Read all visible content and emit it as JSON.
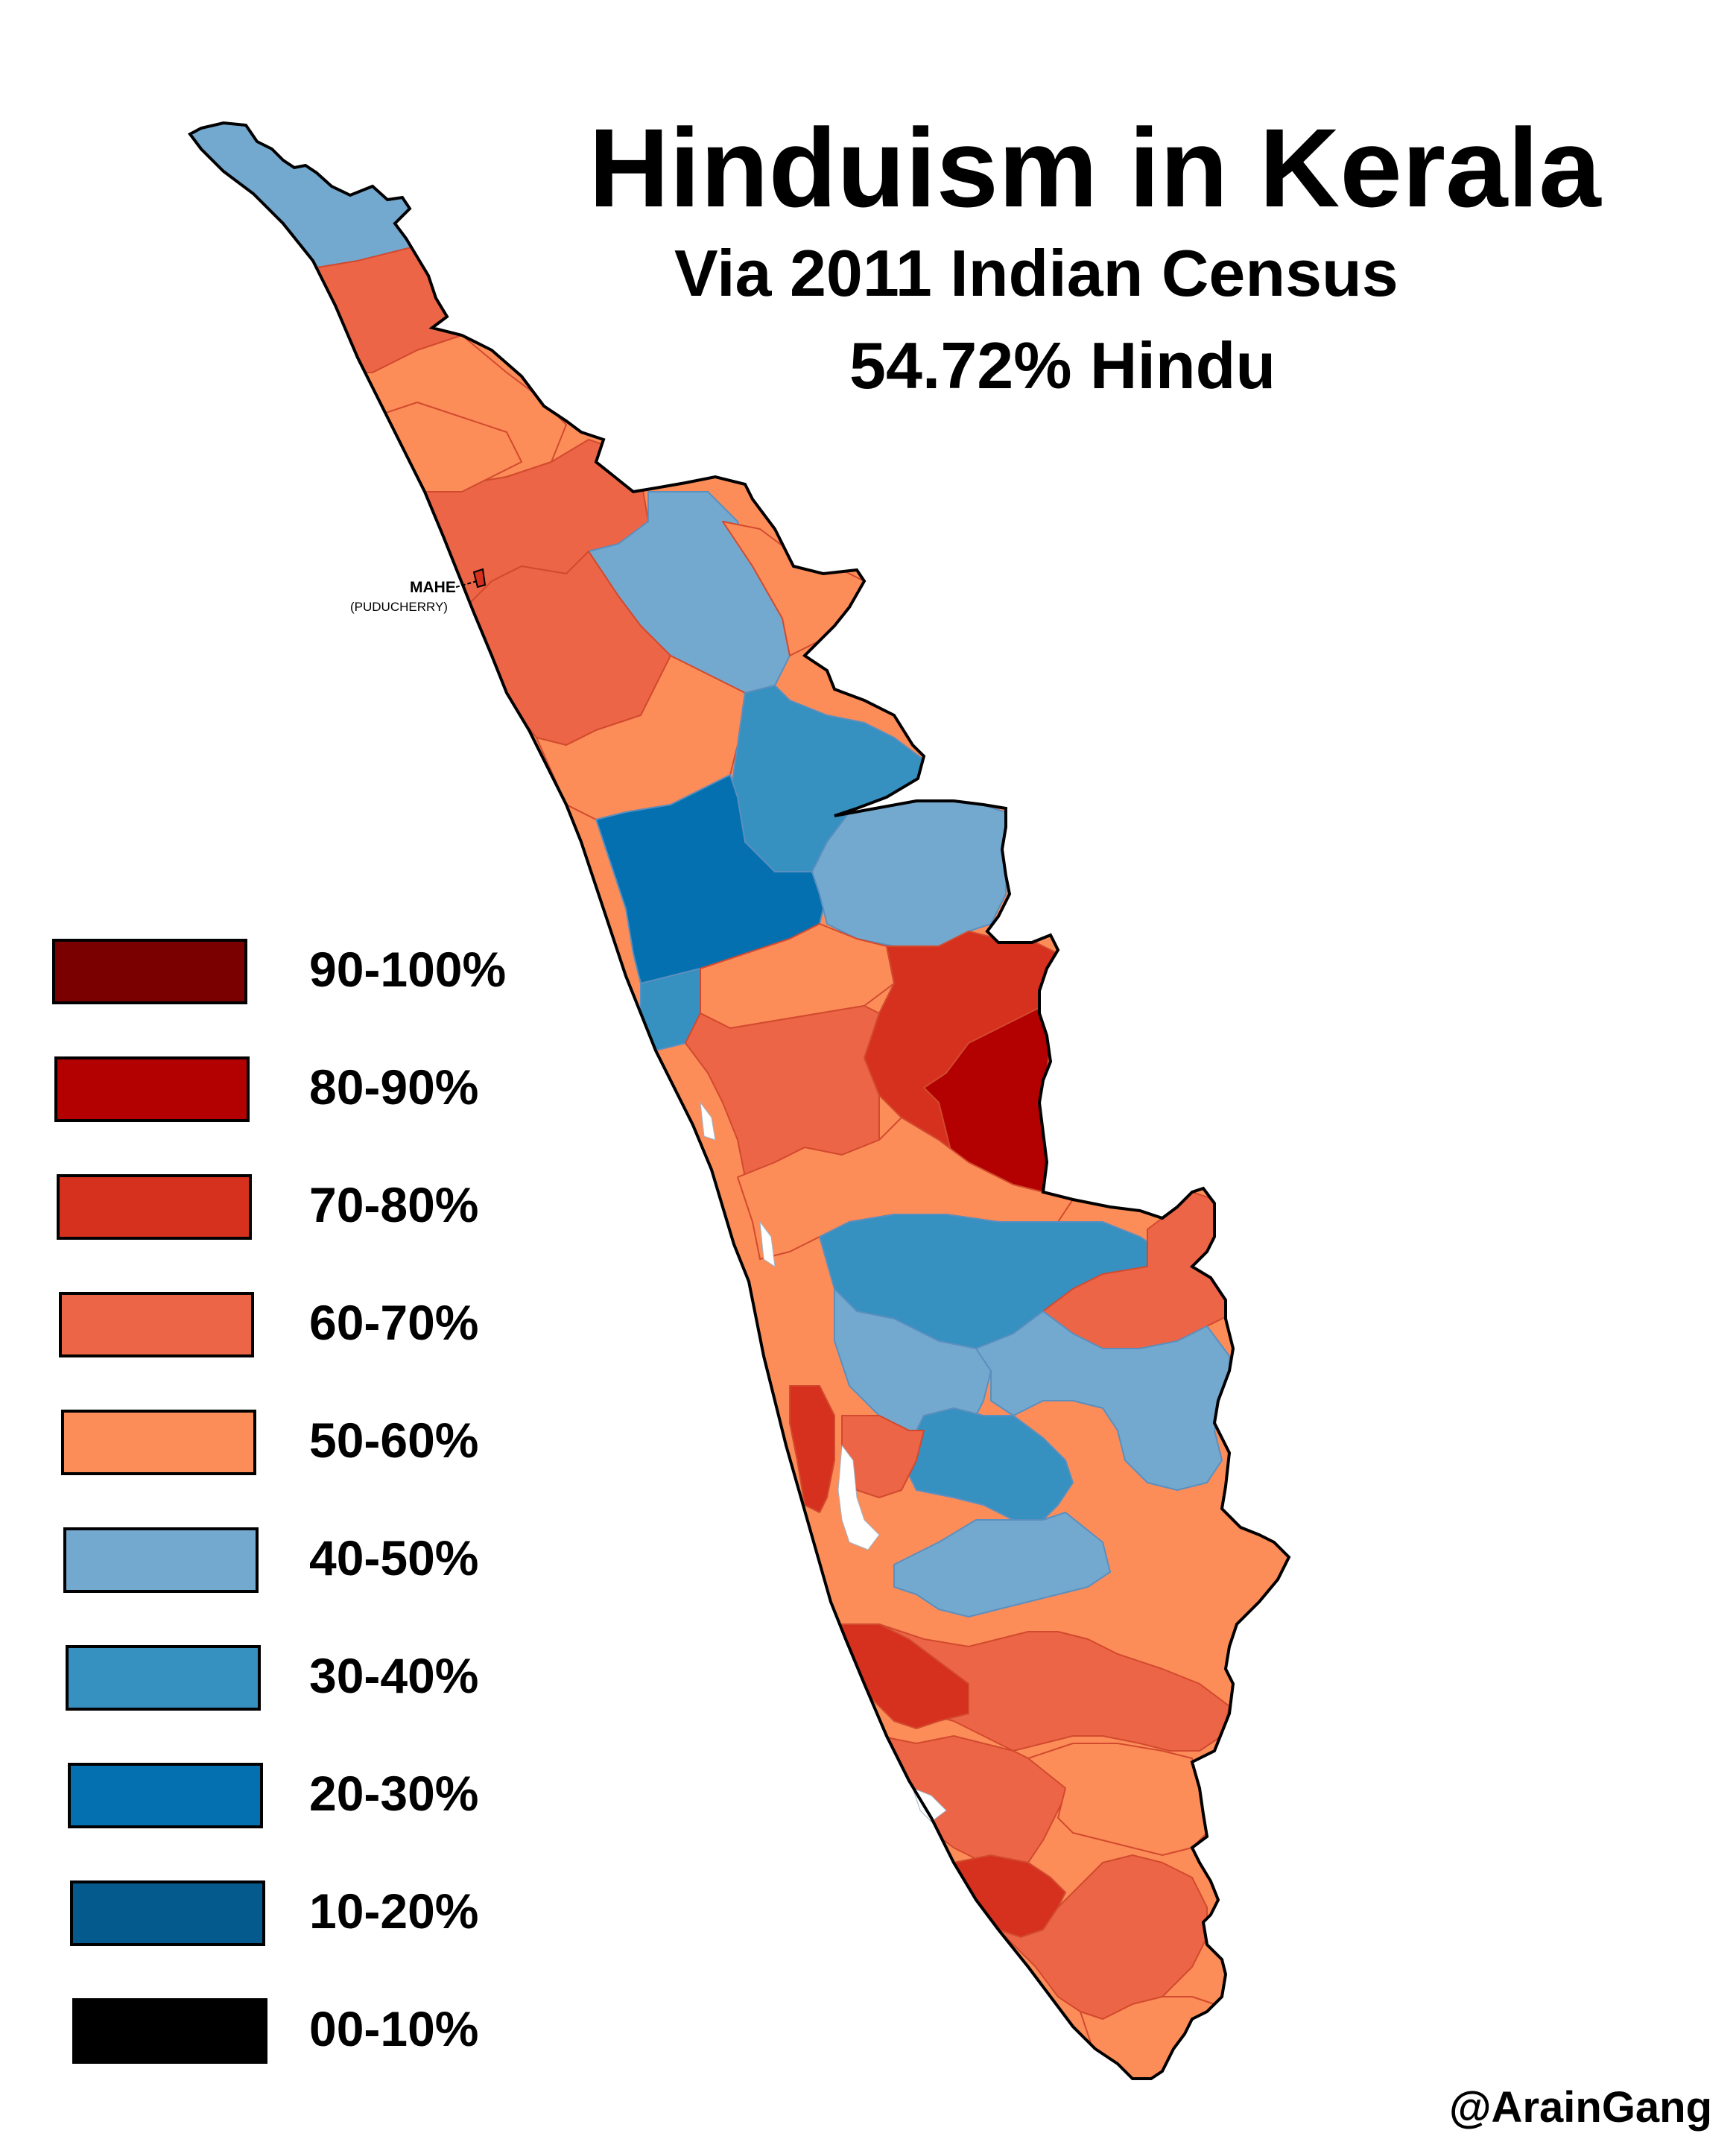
{
  "title": "Hinduism in Kerala",
  "subtitle": "Via 2011 Indian Census",
  "hindu_share": "54.72% Hindu",
  "credit": "@ArainGang",
  "enclave": {
    "name": "MAHE",
    "parent": "(PUDUCHERRY)",
    "color": "#d6301f"
  },
  "legend": [
    {
      "label": "90-100%",
      "color": "#7a0000"
    },
    {
      "label": "80-90%",
      "color": "#b30000"
    },
    {
      "label": "70-80%",
      "color": "#d6301f"
    },
    {
      "label": "60-70%",
      "color": "#ed6547"
    },
    {
      "label": "50-60%",
      "color": "#fc8d59"
    },
    {
      "label": "40-50%",
      "color": "#74a9cf"
    },
    {
      "label": "30-40%",
      "color": "#3690c0"
    },
    {
      "label": "20-30%",
      "color": "#0570b0"
    },
    {
      "label": "10-20%",
      "color": "#045a8d"
    },
    {
      "label": "00-10%",
      "color": "#000000"
    }
  ],
  "colors": {
    "border": "#000000",
    "water": "#ffffff",
    "inner_border_red": "#d24a2e",
    "inner_border_blue": "#5a8fbf"
  }
}
